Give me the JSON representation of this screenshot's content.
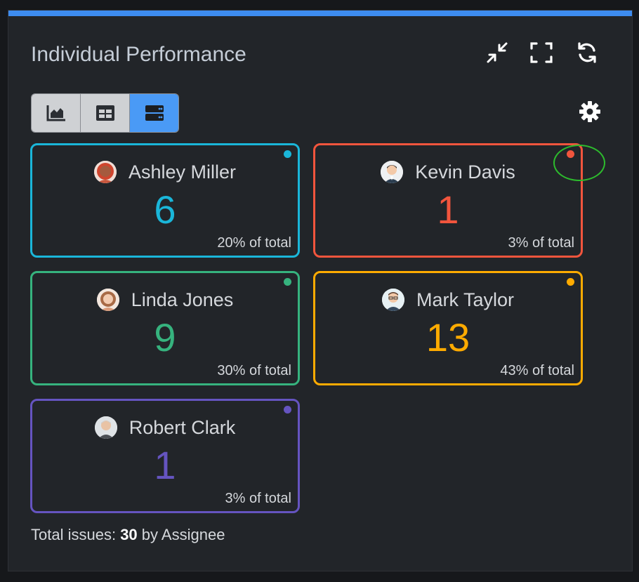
{
  "widget": {
    "title": "Individual Performance",
    "accent_color": "#3d8cf0",
    "header_icons": [
      "collapse-icon",
      "fullscreen-icon",
      "refresh-icon"
    ],
    "view_modes": [
      {
        "name": "chart-view",
        "icon": "area-chart-icon",
        "active": false
      },
      {
        "name": "table-view",
        "icon": "table-icon",
        "active": false
      },
      {
        "name": "card-view",
        "icon": "server-list-icon",
        "active": true
      }
    ],
    "settings_icon": "gear-icon"
  },
  "assignees": [
    {
      "name": "Ashley Miller",
      "count": "6",
      "percent": "20% of total",
      "color": "#1ab6d9",
      "avatar": "woman-red-hair"
    },
    {
      "name": "Kevin Davis",
      "count": "1",
      "percent": "3% of total",
      "color": "#f2553d",
      "avatar": "man-suit"
    },
    {
      "name": "Linda Jones",
      "count": "9",
      "percent": "30% of total",
      "color": "#36b37e",
      "avatar": "woman-brown-hair"
    },
    {
      "name": "Mark Taylor",
      "count": "13",
      "percent": "43% of total",
      "color": "#ffab00",
      "avatar": "man-glasses"
    },
    {
      "name": "Robert Clark",
      "count": "1",
      "percent": "3% of total",
      "color": "#6554c0",
      "avatar": "old-man"
    }
  ],
  "footer": {
    "prefix": "Total issues:",
    "total": "30",
    "suffix": "by Assignee"
  },
  "annotation": {
    "highlight_color": "#2dbb2d"
  }
}
